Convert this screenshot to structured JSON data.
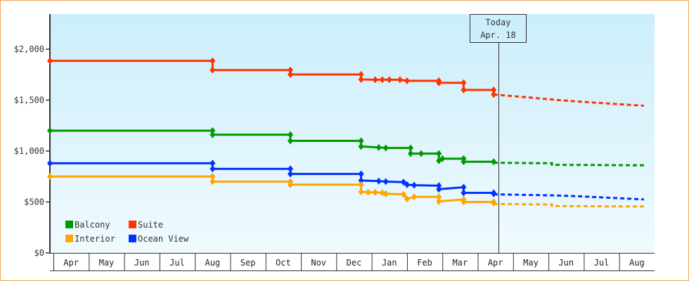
{
  "chart_data": {
    "type": "line",
    "title": "",
    "xlabel": "",
    "ylabel": "",
    "ylim": [
      0,
      2350
    ],
    "y_ticks": [
      {
        "value": 0,
        "label": "$0"
      },
      {
        "value": 500,
        "label": "$500"
      },
      {
        "value": 1000,
        "label": "$1,000"
      },
      {
        "value": 1500,
        "label": "$1,500"
      },
      {
        "value": 2000,
        "label": "$2,000"
      }
    ],
    "x_months": [
      "Apr",
      "May",
      "Jun",
      "Jul",
      "Aug",
      "Sep",
      "Oct",
      "Nov",
      "Dec",
      "Jan",
      "Feb",
      "Mar",
      "Apr",
      "May",
      "Jun",
      "Jul",
      "Aug"
    ],
    "grid": false,
    "legend_position": "lower-left",
    "legend": [
      {
        "name": "Balcony",
        "color": "#009900"
      },
      {
        "name": "Suite",
        "color": "#ff3300"
      },
      {
        "name": "Interior",
        "color": "#ffa500"
      },
      {
        "name": "Ocean View",
        "color": "#0033ff"
      }
    ],
    "today_marker": {
      "line1": "Today",
      "line2": "Apr. 18",
      "x_month_index": 12.55
    },
    "series": [
      {
        "name": "Suite",
        "color": "#ff3300",
        "step": true,
        "points": [
          [
            0,
            1885
          ],
          [
            4.6,
            1885
          ],
          [
            4.6,
            1795
          ],
          [
            6.8,
            1795
          ],
          [
            6.8,
            1752
          ],
          [
            8.8,
            1752
          ],
          [
            8.8,
            1703
          ],
          [
            9.2,
            1700
          ],
          [
            9.4,
            1700
          ],
          [
            9.6,
            1700
          ],
          [
            9.9,
            1700
          ],
          [
            10.1,
            1690
          ],
          [
            11.0,
            1690
          ],
          [
            11.0,
            1670
          ],
          [
            11.7,
            1670
          ],
          [
            11.7,
            1600
          ],
          [
            12.55,
            1600
          ],
          [
            12.55,
            1555
          ]
        ],
        "forecast": [
          [
            12.55,
            1555
          ],
          [
            13.4,
            1530
          ],
          [
            14.4,
            1500
          ],
          [
            15.4,
            1475
          ],
          [
            16.8,
            1445
          ]
        ]
      },
      {
        "name": "Balcony",
        "color": "#009900",
        "step": true,
        "points": [
          [
            0,
            1200
          ],
          [
            4.6,
            1200
          ],
          [
            4.6,
            1160
          ],
          [
            6.8,
            1160
          ],
          [
            6.8,
            1100
          ],
          [
            8.8,
            1100
          ],
          [
            8.8,
            1045
          ],
          [
            9.3,
            1035
          ],
          [
            9.5,
            1030
          ],
          [
            10.2,
            1030
          ],
          [
            10.2,
            975
          ],
          [
            10.5,
            975
          ],
          [
            11.0,
            975
          ],
          [
            11.0,
            905
          ],
          [
            11.1,
            925
          ],
          [
            11.7,
            925
          ],
          [
            11.7,
            895
          ],
          [
            12.55,
            895
          ]
        ],
        "forecast": [
          [
            12.55,
            885
          ],
          [
            14.2,
            880
          ],
          [
            14.2,
            865
          ],
          [
            16.8,
            860
          ]
        ]
      },
      {
        "name": "Ocean View",
        "color": "#0033ff",
        "step": true,
        "points": [
          [
            0,
            880
          ],
          [
            4.6,
            880
          ],
          [
            4.6,
            825
          ],
          [
            6.8,
            825
          ],
          [
            6.8,
            775
          ],
          [
            8.8,
            775
          ],
          [
            8.8,
            710
          ],
          [
            9.3,
            705
          ],
          [
            9.5,
            700
          ],
          [
            10.0,
            695
          ],
          [
            10.1,
            670
          ],
          [
            10.3,
            665
          ],
          [
            11.0,
            660
          ],
          [
            11.0,
            625
          ],
          [
            11.7,
            645
          ],
          [
            11.7,
            590
          ],
          [
            12.55,
            590
          ],
          [
            12.55,
            580
          ]
        ],
        "forecast": [
          [
            12.55,
            575
          ],
          [
            14.2,
            565
          ],
          [
            15.0,
            555
          ],
          [
            16.8,
            525
          ]
        ]
      },
      {
        "name": "Interior",
        "color": "#ffa500",
        "step": true,
        "points": [
          [
            0,
            750
          ],
          [
            4.6,
            750
          ],
          [
            4.6,
            700
          ],
          [
            6.8,
            700
          ],
          [
            6.8,
            670
          ],
          [
            8.8,
            670
          ],
          [
            8.8,
            600
          ],
          [
            9.0,
            595
          ],
          [
            9.2,
            595
          ],
          [
            9.4,
            590
          ],
          [
            9.5,
            580
          ],
          [
            10.0,
            575
          ],
          [
            10.1,
            530
          ],
          [
            10.3,
            550
          ],
          [
            11.0,
            550
          ],
          [
            11.0,
            505
          ],
          [
            11.7,
            525
          ],
          [
            11.7,
            500
          ],
          [
            12.55,
            500
          ],
          [
            12.55,
            490
          ]
        ],
        "forecast": [
          [
            12.55,
            480
          ],
          [
            14.2,
            475
          ],
          [
            14.2,
            460
          ],
          [
            16.8,
            455
          ]
        ]
      }
    ]
  }
}
